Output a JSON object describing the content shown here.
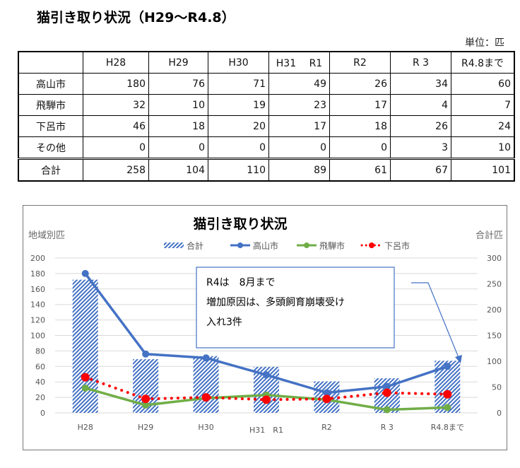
{
  "title": "猫引き取り状況（H29～R4.8）",
  "unit": "単位：匹",
  "table": {
    "headers": [
      "",
      "H28",
      "H29",
      "H30",
      "H31　 R1",
      "R2",
      "R 3",
      "R4.8まで"
    ],
    "rows": [
      {
        "label": "高山市",
        "values": [
          "180",
          "76",
          "71",
          "49",
          "26",
          "34",
          "60"
        ]
      },
      {
        "label": "飛騨市",
        "values": [
          "32",
          "10",
          "19",
          "23",
          "17",
          "4",
          "7"
        ]
      },
      {
        "label": "下呂市",
        "values": [
          "46",
          "18",
          "20",
          "17",
          "18",
          "26",
          "24"
        ]
      },
      {
        "label": "その他",
        "values": [
          "0",
          "0",
          "0",
          "0",
          "0",
          "3",
          "10"
        ]
      }
    ],
    "total": {
      "label": "合計",
      "values": [
        "258",
        "104",
        "110",
        "89",
        "61",
        "67",
        "101"
      ]
    }
  },
  "chart_data": {
    "type": "bar",
    "title": "猫引き取り状況",
    "ylabel": "地域別匹",
    "y2label": "合計匹",
    "ylim": [
      0,
      200
    ],
    "yticks": [
      0,
      20,
      40,
      60,
      80,
      100,
      120,
      140,
      160,
      180,
      200
    ],
    "y2lim": [
      0,
      300
    ],
    "y2ticks": [
      0,
      50,
      100,
      150,
      200,
      250,
      300
    ],
    "categories": [
      "H28",
      "H29",
      "H30",
      "H31　R1",
      "R2",
      "R 3",
      "R4.8まで"
    ],
    "bars": {
      "name": "合計",
      "values": [
        258,
        104,
        110,
        89,
        61,
        67,
        101
      ],
      "color": "#4472c4"
    },
    "series": [
      {
        "name": "高山市",
        "values": [
          180,
          76,
          71,
          49,
          26,
          34,
          60
        ],
        "color": "#4472c4",
        "style": "solid"
      },
      {
        "name": "飛騨市",
        "values": [
          32,
          10,
          19,
          23,
          17,
          4,
          7
        ],
        "color": "#70ad47",
        "style": "solid"
      },
      {
        "name": "下呂市",
        "values": [
          46,
          18,
          20,
          17,
          18,
          26,
          24
        ],
        "color": "#ff0000",
        "style": "dotted"
      }
    ],
    "annotation": [
      "R4は　8月まで",
      "増加原因は、多頭飼育崩壊受け",
      "入れ3件"
    ]
  }
}
